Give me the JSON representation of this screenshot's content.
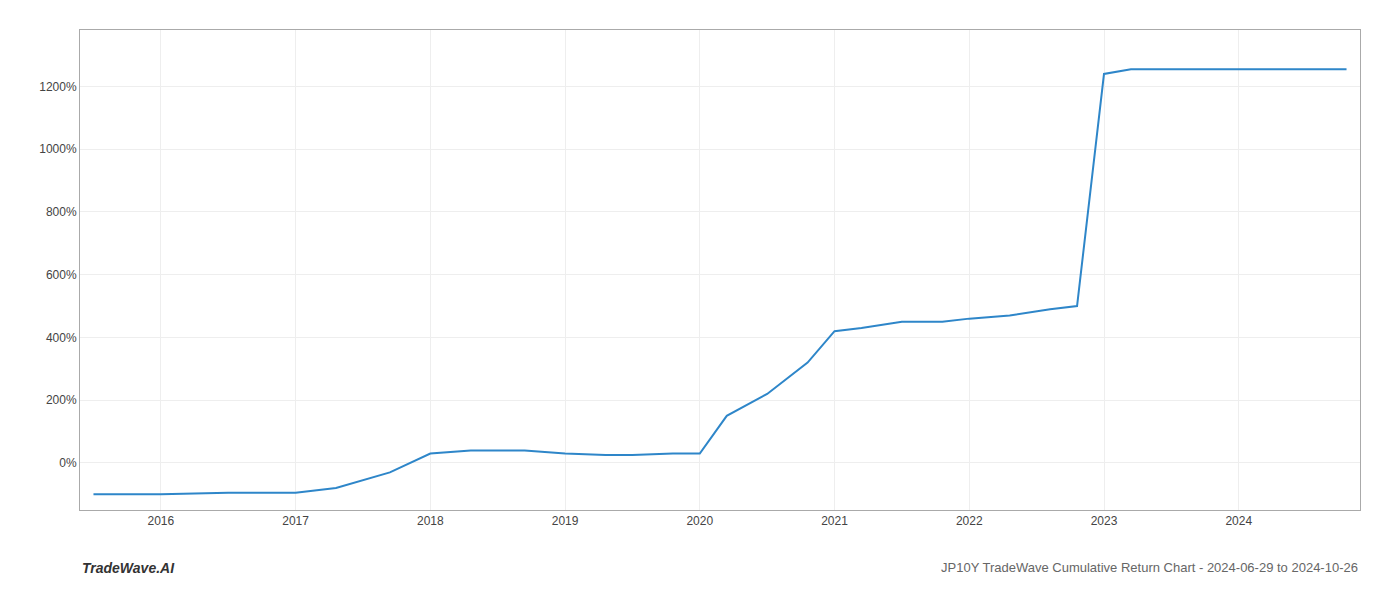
{
  "chart_data": {
    "type": "line",
    "title": "JP10Y TradeWave Cumulative Return Chart - 2024-06-29 to 2024-10-26",
    "annotations": [
      "TradeWave.AI"
    ],
    "x": [
      2015.5,
      2016.0,
      2016.5,
      2017.0,
      2017.3,
      2017.7,
      2018.0,
      2018.3,
      2018.7,
      2019.0,
      2019.3,
      2019.5,
      2019.8,
      2020.0,
      2020.2,
      2020.5,
      2020.8,
      2021.0,
      2021.2,
      2021.5,
      2021.8,
      2022.0,
      2022.3,
      2022.6,
      2022.8,
      2023.0,
      2023.2,
      2023.5,
      2024.0,
      2024.8
    ],
    "values": [
      -100,
      -100,
      -95,
      -95,
      -80,
      -30,
      30,
      40,
      40,
      30,
      25,
      25,
      30,
      30,
      150,
      220,
      320,
      420,
      430,
      450,
      450,
      460,
      470,
      490,
      500,
      1240,
      1255,
      1255,
      1255,
      1255
    ],
    "color": "#2e86c9",
    "xlim": [
      2015.4,
      2024.9
    ],
    "xticks": [
      2016,
      2017,
      2018,
      2019,
      2020,
      2021,
      2022,
      2023,
      2024
    ],
    "ylim": [
      -150,
      1380
    ],
    "yticks": [
      {
        "value": 0,
        "label": "0%"
      },
      {
        "value": 200,
        "label": "200%"
      },
      {
        "value": 400,
        "label": "400%"
      },
      {
        "value": 600,
        "label": "600%"
      },
      {
        "value": 800,
        "label": "800%"
      },
      {
        "value": 1000,
        "label": "1000%"
      },
      {
        "value": 1200,
        "label": "1200%"
      }
    ],
    "grid": true
  }
}
